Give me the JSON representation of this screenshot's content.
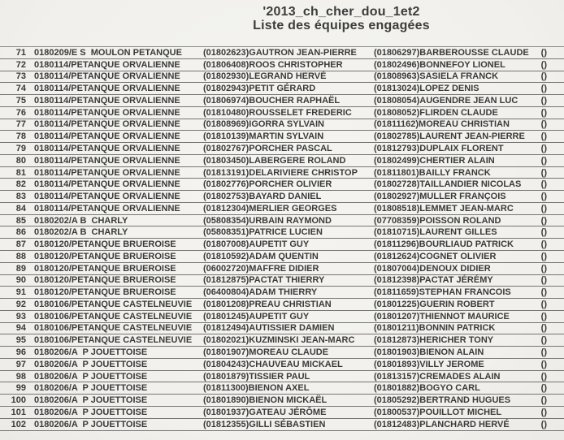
{
  "title": {
    "line1": "'2013_ch_cher_dou_1et2",
    "line2": "Liste des équipes engagées"
  },
  "colors": {
    "paper": "#f3f2ee",
    "ink": "#3a3a3a",
    "rule": "#757575"
  },
  "table": {
    "tail": "()",
    "rows": [
      {
        "num": "71",
        "club": "0180209/E S  MOULON PETANQUE",
        "p1": "(01802623)GAUTRON JEAN-PIERRE",
        "p2": "(01806297)BARBEROUSSE CLAUDE"
      },
      {
        "num": "72",
        "club": "0180114/PETANQUE ORVALIENNE",
        "p1": "(01806408)ROOS CHRISTOPHER",
        "p2": "(01802496)BONNEFOY LIONEL"
      },
      {
        "num": "73",
        "club": "0180114/PETANQUE ORVALIENNE",
        "p1": "(01802930)LEGRAND HERVÉ",
        "p2": "(01808963)SASIELA FRANCK"
      },
      {
        "num": "74",
        "club": "0180114/PETANQUE ORVALIENNE",
        "p1": "(01802943)PETIT GÉRARD",
        "p2": "(01813024)LOPEZ DENIS"
      },
      {
        "num": "75",
        "club": "0180114/PETANQUE ORVALIENNE",
        "p1": "(01806974)BOUCHER RAPHAËL",
        "p2": "(01808054)AUGENDRE JEAN LUC"
      },
      {
        "num": "76",
        "club": "0180114/PETANQUE ORVALIENNE",
        "p1": "(01810480)ROUSSELET FREDERIC",
        "p2": "(01808052)FLIRDEN CLAUDE"
      },
      {
        "num": "77",
        "club": "0180114/PETANQUE ORVALIENNE",
        "p1": "(01808969)IGORRA SYLVAIN",
        "p2": "(01811162)MOREAU CHRISTIAN"
      },
      {
        "num": "78",
        "club": "0180114/PETANQUE ORVALIENNE",
        "p1": "(01810139)MARTIN SYLVAIN",
        "p2": "(01802785)LAURENT JEAN-PIERRE"
      },
      {
        "num": "79",
        "club": "0180114/PETANQUE ORVALIENNE",
        "p1": "(01802767)PORCHER PASCAL",
        "p2": "(01812793)DUPLAIX FLORENT"
      },
      {
        "num": "80",
        "club": "0180114/PETANQUE ORVALIENNE",
        "p1": "(01803450)LABERGERE ROLAND",
        "p2": "(01802499)CHERTIER ALAIN"
      },
      {
        "num": "81",
        "club": "0180114/PETANQUE ORVALIENNE",
        "p1": "(01813191)DELARIVIERE CHRISTOP",
        "p2": "(01811801)BAILLY FRANCK"
      },
      {
        "num": "82",
        "club": "0180114/PETANQUE ORVALIENNE",
        "p1": "(01802776)PORCHER OLIVIER",
        "p2": "(01802728)TAILLANDIER NICOLAS"
      },
      {
        "num": "83",
        "club": "0180114/PETANQUE ORVALIENNE",
        "p1": "(01802753)BAYARD DANIEL",
        "p2": "(01802927)MULLER FRANÇOIS"
      },
      {
        "num": "84",
        "club": "0180114/PETANQUE ORVALIENNE",
        "p1": "(01812304)MERLIER GEORGES",
        "p2": "(01808518)LEMMET JEAN-MARC"
      },
      {
        "num": "85",
        "club": "0180202/A B  CHARLY",
        "p1": "(05808354)URBAIN RAYMOND",
        "p2": "(07708359)POISSON ROLAND"
      },
      {
        "num": "86",
        "club": "0180202/A B  CHARLY",
        "p1": "(05808351)PATRICE LUCIEN",
        "p2": "(01810715)LAURENT GILLES"
      },
      {
        "num": "87",
        "club": "0180120/PETANQUE BRUEROISE",
        "p1": "(01807008)AUPETIT GUY",
        "p2": "(01811296)BOURLIAUD PATRICK"
      },
      {
        "num": "88",
        "club": "0180120/PETANQUE BRUEROISE",
        "p1": "(01810592)ADAM QUENTIN",
        "p2": "(01812624)COGNET OLIVIER"
      },
      {
        "num": "89",
        "club": "0180120/PETANQUE BRUEROISE",
        "p1": "(06002720)MAFFRE DIDIER",
        "p2": "(01807004)DENOUX DIDIER"
      },
      {
        "num": "90",
        "club": "0180120/PETANQUE BRUEROISE",
        "p1": "(01812875)PACTAT THIERRY",
        "p2": "(01812398)PACTAT JÉRÉMY"
      },
      {
        "num": "91",
        "club": "0180120/PETANQUE BRUEROISE",
        "p1": "(06400804)ADAM THIERRY",
        "p2": "(01811659)STEPHAN FRANCOIS"
      },
      {
        "num": "92",
        "club": "0180106/PETANQUE CASTELNEUVIE",
        "p1": "(01801208)PREAU CHRISTIAN",
        "p2": "(01801225)GUERIN ROBERT"
      },
      {
        "num": "93",
        "club": "0180106/PETANQUE CASTELNEUVIE",
        "p1": "(01801245)AUPETIT GUY",
        "p2": "(01801207)THIENNOT MAURICE"
      },
      {
        "num": "94",
        "club": "0180106/PETANQUE CASTELNEUVIE",
        "p1": "(01812494)AUTISSIER DAMIEN",
        "p2": "(01801211)BONNIN PATRICK"
      },
      {
        "num": "95",
        "club": "0180106/PETANQUE CASTELNEUVIE",
        "p1": "(01802021)KUZMINSKI JEAN-MARC",
        "p2": "(01812873)HERICHER TONY"
      },
      {
        "num": "96",
        "club": "0180206/A  P JOUETTOISE",
        "p1": "(01801907)MOREAU CLAUDE",
        "p2": "(01801903)BIENON ALAIN"
      },
      {
        "num": "97",
        "club": "0180206/A  P JOUETTOISE",
        "p1": "(01804243)CHAUVEAU MICKAEL",
        "p2": "(01801893)VILLY JEROME"
      },
      {
        "num": "98",
        "club": "0180206/A  P JOUETTOISE",
        "p1": "(01801879)TISSIER PAUL",
        "p2": "(01813157)CREMADES ALAIN"
      },
      {
        "num": "99",
        "club": "0180206/A  P JOUETTOISE",
        "p1": "(01811300)BIENON AXEL",
        "p2": "(01801882)BOGYO CARL"
      },
      {
        "num": "100",
        "club": "0180206/A  P JOUETTOISE",
        "p1": "(01801890)BIENON MICKAËL",
        "p2": "(01805292)BERTRAND HUGUES"
      },
      {
        "num": "101",
        "club": "0180206/A  P JOUETTOISE",
        "p1": "(01801937)GATEAU JÉRÔME",
        "p2": "(01800537)POUILLOT MICHEL"
      },
      {
        "num": "102",
        "club": "0180206/A  P JOUETTOISE",
        "p1": "(01812355)GILLI SÉBASTIEN",
        "p2": "(01812483)PLANCHARD HERVÉ"
      }
    ]
  }
}
